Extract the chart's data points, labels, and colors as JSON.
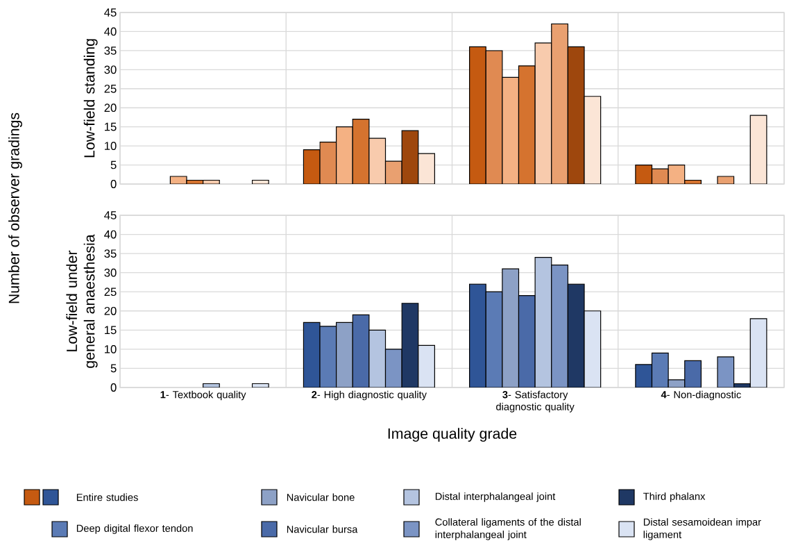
{
  "chart_data": [
    {
      "type": "bar",
      "ylabel": "Low-field standing",
      "categories": [
        null,
        null,
        null,
        null
      ],
      "ylim": [
        0,
        45
      ],
      "yticks": [
        0,
        5,
        10,
        15,
        20,
        25,
        30,
        35,
        40,
        45
      ],
      "grid": true,
      "tick_labels": "y",
      "annotations": [
        "Number of observer gradings"
      ],
      "series": [
        {
          "color": "#c55a11",
          "values": [
            0,
            9,
            36,
            5
          ]
        },
        {
          "color": "#e08a52",
          "values": [
            0,
            11,
            35,
            4
          ]
        },
        {
          "color": "#f4b183",
          "values": [
            2,
            15,
            28,
            5
          ]
        },
        {
          "color": "#d5732f",
          "values": [
            1,
            17,
            31,
            1
          ]
        },
        {
          "color": "#f8cbad",
          "values": [
            1,
            12,
            37,
            0
          ]
        },
        {
          "color": "#e9a070",
          "values": [
            0,
            6,
            42,
            2
          ]
        },
        {
          "color": "#9e470d",
          "values": [
            0,
            14,
            36,
            0
          ]
        },
        {
          "color": "#fbe5d6",
          "values": [
            1,
            8,
            23,
            18
          ]
        }
      ]
    },
    {
      "type": "bar",
      "ylabel": "Low-field under general anaesthesia",
      "xlabel": "Image quality grade",
      "categories": [
        "**1**- Textbook quality",
        "**2**- High diagnostic quality",
        "**3**- Satisfactory diagnostic quality",
        "**4**- Non-diagnostic"
      ],
      "ylim": [
        0,
        45
      ],
      "yticks": [
        0,
        5,
        10,
        15,
        20,
        25,
        30,
        35,
        40,
        45
      ],
      "grid": true,
      "legend": "bottom",
      "series": [
        {
          "name": "Entire studies",
          "color": "#2f5597",
          "values": [
            0,
            17,
            27,
            6
          ]
        },
        {
          "name": "Deep digital flexor tendon",
          "color": "#5b7bb5",
          "values": [
            0,
            16,
            25,
            9
          ]
        },
        {
          "name": "Navicular bone",
          "color": "#8da1c6",
          "values": [
            0,
            17,
            31,
            2
          ]
        },
        {
          "name": "Navicular bursa",
          "color": "#4a6aa8",
          "values": [
            0,
            19,
            24,
            7
          ]
        },
        {
          "name": "Distal interphalangeal joint",
          "color": "#b4c4e0",
          "values": [
            1,
            15,
            34,
            0
          ]
        },
        {
          "name": "Collateral ligaments of the distal interphalangeal joint",
          "color": "#7b94c4",
          "values": [
            0,
            10,
            32,
            8
          ]
        },
        {
          "name": "Third phalanx",
          "color": "#1f3864",
          "values": [
            0,
            22,
            27,
            1
          ]
        },
        {
          "name": "Distal sesamoidean impar ligament",
          "color": "#dae3f3",
          "values": [
            1,
            11,
            20,
            18
          ]
        }
      ]
    }
  ]
}
